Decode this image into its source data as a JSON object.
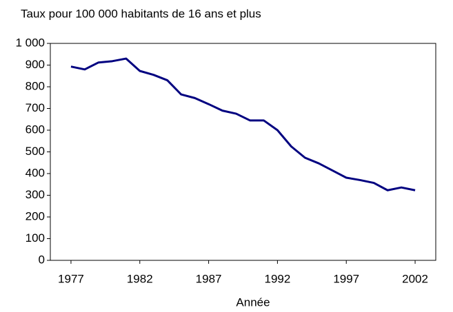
{
  "chart_data": {
    "type": "line",
    "title": "Taux pour 100 000 habitants de 16 ans et plus",
    "x_label": "Année",
    "x": [
      1977,
      1978,
      1979,
      1980,
      1981,
      1982,
      1983,
      1984,
      1985,
      1986,
      1987,
      1988,
      1989,
      1990,
      1991,
      1992,
      1993,
      1994,
      1995,
      1996,
      1997,
      1998,
      1999,
      2000,
      2001,
      2002
    ],
    "series": [
      {
        "name": null,
        "color": "#000080",
        "values": [
          893,
          880,
          912,
          918,
          930,
          873,
          855,
          830,
          765,
          748,
          720,
          690,
          676,
          645,
          645,
          600,
          525,
          473,
          447,
          414,
          381,
          370,
          357,
          323,
          336,
          323
        ]
      }
    ],
    "xlim": [
      1975.5,
      2003.5
    ],
    "xticks": [
      1977,
      1982,
      1987,
      1992,
      1997,
      2002
    ],
    "ylim": [
      0,
      1000
    ],
    "yticks": [
      0,
      100,
      200,
      300,
      400,
      500,
      600,
      700,
      800,
      900,
      {
        "value": 1000,
        "label": "1 000"
      }
    ],
    "grid": false
  }
}
